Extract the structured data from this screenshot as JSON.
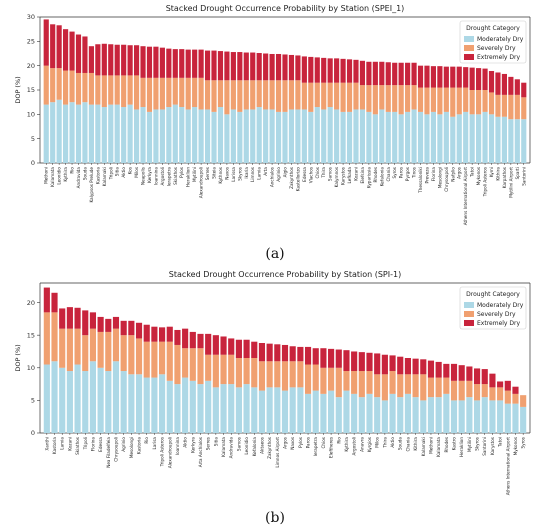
{
  "figure_labels": {
    "a": "(a)",
    "b": "(b)"
  },
  "colors": {
    "moderately": "#add8e6",
    "severely": "#f0a070",
    "extremely": "#c8243c",
    "legend_bg": "#ffffff"
  },
  "chart_data": [
    {
      "type": "bar",
      "stacked": true,
      "title": "Stacked Drought Occurrence Probability by Station (SPEI_1)",
      "xlabel": "",
      "ylabel": "DOP (%)",
      "ylim": [
        0,
        30
      ],
      "yticks": [
        0,
        5,
        10,
        15,
        20,
        25,
        30
      ],
      "grid": false,
      "legend_title": "Drought Category",
      "legend_position": "top-right",
      "categories": [
        "Methoni",
        "Kalamata",
        "Leonidio",
        "Kythira",
        "Rio",
        "Andravida",
        "Souda",
        "Kalypsos Prelude",
        "Kastoria",
        "Kalamaki",
        "Tripoli",
        "Sitia",
        "Aktio",
        "Kos",
        "Milos",
        "Neapolis",
        "Kerkyra",
        "Ioannina",
        "Argostoli",
        "Ierapetra",
        "Skiathos",
        "Pylos",
        "Heraklion",
        "Mytilini",
        "Alexandroupoli",
        "Serres",
        "Siteia",
        "Kythnos",
        "Naxos",
        "Larissa",
        "Skyros",
        "Ikaria",
        "Limnos",
        "Lamia",
        "Arta",
        "Anchialos",
        "Agrinio",
        "Aigio",
        "Zakynthos",
        "Kastellorizo",
        "Edessa",
        "Vlachos",
        "Chios",
        "Thira",
        "Samos",
        "Kalymnos",
        "Karystos",
        "Lefkada",
        "Kozani",
        "Elefsina",
        "Kyparissia",
        "Rhodes",
        "Kefalonia",
        "Chania",
        "Syros",
        "Paros",
        "Pyrgos",
        "Tinos",
        "Thessaloniki",
        "Preveza",
        "Florina",
        "Mesolongi",
        "Chrysoupoli",
        "Nafplio",
        "Argos",
        "Athens International Airport",
        "Tatoi",
        "Mykonos",
        "Tripoli Asteros",
        "Kymi",
        "Kithira",
        "Karpathos",
        "Mytilini Airport",
        "Sparti",
        "Santorini"
      ],
      "series": [
        {
          "name": "Moderately Dry",
          "values": [
            12.0,
            12.5,
            13.0,
            12.0,
            12.5,
            12.0,
            12.5,
            12.0,
            12.0,
            11.5,
            12.0,
            12.0,
            11.5,
            12.0,
            11.0,
            11.5,
            10.5,
            11.0,
            11.0,
            11.5,
            12.0,
            11.5,
            11.0,
            11.5,
            11.0,
            11.0,
            10.5,
            11.5,
            10.0,
            11.0,
            10.5,
            11.0,
            11.0,
            11.5,
            11.0,
            11.0,
            10.5,
            10.5,
            11.0,
            11.0,
            11.0,
            10.5,
            11.5,
            11.0,
            11.5,
            11.0,
            10.5,
            10.5,
            11.0,
            11.0,
            10.5,
            10.0,
            11.0,
            10.5,
            10.5,
            10.0,
            10.5,
            11.0,
            10.5,
            10.0,
            10.5,
            10.0,
            10.5,
            9.5,
            10.0,
            10.5,
            10.0,
            10.0,
            10.5,
            10.0,
            9.5,
            9.5,
            9.0,
            9.0,
            9.0
          ]
        },
        {
          "name": "Severely Dry",
          "values": [
            8.0,
            7.0,
            6.5,
            7.0,
            6.5,
            6.5,
            6.0,
            6.5,
            6.0,
            6.5,
            6.0,
            6.0,
            6.5,
            6.0,
            7.0,
            6.0,
            7.0,
            6.5,
            6.5,
            6.0,
            5.5,
            6.0,
            6.5,
            6.0,
            6.5,
            6.0,
            6.5,
            5.5,
            7.0,
            6.0,
            6.5,
            6.0,
            6.0,
            5.5,
            6.0,
            6.0,
            6.5,
            6.5,
            6.0,
            6.0,
            5.5,
            6.0,
            5.0,
            5.5,
            5.0,
            5.5,
            6.0,
            6.0,
            5.5,
            5.0,
            5.5,
            6.0,
            5.0,
            5.5,
            5.5,
            6.0,
            5.5,
            5.0,
            5.0,
            5.5,
            5.0,
            5.5,
            5.0,
            6.0,
            5.5,
            5.0,
            5.0,
            5.0,
            4.5,
            4.5,
            4.5,
            4.5,
            5.0,
            5.0,
            4.5
          ]
        },
        {
          "name": "Extremely Dry",
          "values": [
            9.5,
            9.0,
            8.8,
            8.5,
            8.0,
            7.9,
            7.5,
            5.5,
            6.4,
            6.5,
            6.4,
            6.3,
            6.3,
            6.2,
            6.2,
            6.5,
            6.4,
            6.4,
            6.2,
            6.0,
            5.9,
            5.9,
            5.8,
            5.8,
            5.8,
            6.1,
            6.1,
            6.0,
            5.9,
            5.8,
            5.8,
            5.7,
            5.7,
            5.6,
            5.5,
            5.4,
            5.4,
            5.3,
            5.2,
            5.1,
            5.4,
            5.3,
            5.2,
            5.1,
            5.0,
            5.0,
            4.9,
            4.8,
            4.7,
            5.0,
            4.8,
            4.8,
            4.8,
            4.7,
            4.6,
            4.6,
            4.6,
            4.6,
            4.5,
            4.5,
            4.4,
            4.4,
            4.3,
            4.3,
            4.3,
            4.2,
            4.6,
            4.5,
            4.4,
            4.4,
            4.6,
            4.3,
            3.7,
            3.2,
            3.0
          ]
        }
      ]
    },
    {
      "type": "bar",
      "stacked": true,
      "title": "Stacked Drought Occurrence Probability by Station (SPI-1)",
      "xlabel": "",
      "ylabel": "DOP (%)",
      "ylim": [
        0,
        23
      ],
      "yticks": [
        0,
        5,
        10,
        15,
        20
      ],
      "grid": false,
      "legend_title": "Drought Category",
      "legend_position": "top-right",
      "categories": [
        "Xanthi",
        "Kastoria",
        "Lamia",
        "Kozani",
        "Skiathos",
        "Tripoli",
        "Florina",
        "Edessa",
        "Nea Filadelfeia",
        "Chrysoupoli",
        "Agrinio",
        "Mesolongi",
        "Kastoria",
        "Rio",
        "Larisa",
        "Tripoli Asteros",
        "Alexandroupoli",
        "Ioannina",
        "Aktio",
        "Kerkyra",
        "Arta Anchialos",
        "Serres",
        "Sitia",
        "Kalamata",
        "Andravida",
        "Samos",
        "Leonidio",
        "Kefalonia",
        "Aktaeos",
        "Zakynthos",
        "Limnos Airport",
        "Argos",
        "Naxos",
        "Pylos",
        "Paros",
        "Ierapetra",
        "Chios",
        "Eleftheres",
        "Rio",
        "Kythira",
        "Argostoli",
        "Anavra",
        "Kyrgios",
        "Milos",
        "Thira",
        "Aktio",
        "Souda",
        "Chania",
        "Kithira",
        "Kalamaki",
        "Methoni",
        "Kalamata",
        "Rhodes",
        "Kastro",
        "Heraklion",
        "Mytilini",
        "Skyros",
        "Santorini",
        "Karystos",
        "Tatoi",
        "Athens International Airport",
        "Mykonos",
        "Syros"
      ],
      "series": [
        {
          "name": "Moderately Dry",
          "values": [
            10.5,
            11.0,
            10.0,
            9.5,
            10.5,
            9.5,
            11.0,
            10.0,
            9.5,
            11.0,
            9.5,
            9.0,
            9.0,
            8.5,
            8.5,
            9.0,
            8.0,
            7.5,
            8.5,
            8.0,
            7.5,
            8.0,
            7.0,
            7.5,
            7.5,
            7.0,
            7.5,
            7.0,
            6.5,
            7.0,
            7.0,
            6.5,
            7.0,
            7.0,
            6.0,
            6.5,
            6.0,
            6.5,
            5.5,
            6.5,
            6.0,
            5.5,
            6.0,
            5.5,
            5.0,
            6.0,
            5.5,
            6.0,
            5.5,
            5.0,
            5.5,
            5.5,
            6.0,
            5.0,
            5.0,
            5.5,
            5.0,
            5.5,
            5.0,
            5.0,
            4.5,
            4.5,
            4.0
          ]
        },
        {
          "name": "Severely Dry",
          "values": [
            8.0,
            7.5,
            6.0,
            6.5,
            5.5,
            5.5,
            5.0,
            5.5,
            6.0,
            5.0,
            5.5,
            6.0,
            5.5,
            5.5,
            5.5,
            5.0,
            6.0,
            6.0,
            4.5,
            5.0,
            5.5,
            4.0,
            5.0,
            4.5,
            4.5,
            4.5,
            4.0,
            4.5,
            4.5,
            4.0,
            4.0,
            4.5,
            4.0,
            4.0,
            4.5,
            4.0,
            4.0,
            3.5,
            4.5,
            3.0,
            3.5,
            4.0,
            3.5,
            3.5,
            4.0,
            3.5,
            3.5,
            3.0,
            3.5,
            4.0,
            3.0,
            3.0,
            2.5,
            3.0,
            3.0,
            2.5,
            2.5,
            2.0,
            2.0,
            2.0,
            2.0,
            1.5,
            1.8
          ]
        },
        {
          "name": "Extremely Dry",
          "values": [
            3.8,
            3.0,
            3.1,
            3.3,
            3.2,
            3.8,
            2.5,
            2.3,
            2.0,
            1.8,
            2.2,
            2.2,
            2.4,
            2.6,
            2.3,
            2.2,
            2.3,
            2.3,
            3.0,
            2.5,
            2.2,
            3.2,
            3.0,
            2.8,
            2.5,
            2.8,
            2.8,
            2.5,
            2.8,
            2.7,
            2.6,
            2.5,
            2.3,
            2.2,
            2.7,
            2.5,
            3.0,
            2.9,
            2.8,
            3.2,
            3.0,
            2.9,
            2.8,
            3.2,
            3.0,
            2.4,
            2.7,
            2.5,
            2.4,
            2.3,
            2.6,
            2.4,
            2.1,
            2.6,
            2.4,
            2.2,
            2.4,
            2.3,
            2.1,
            0.9,
            1.5,
            1.1,
            0.0
          ]
        }
      ]
    }
  ]
}
